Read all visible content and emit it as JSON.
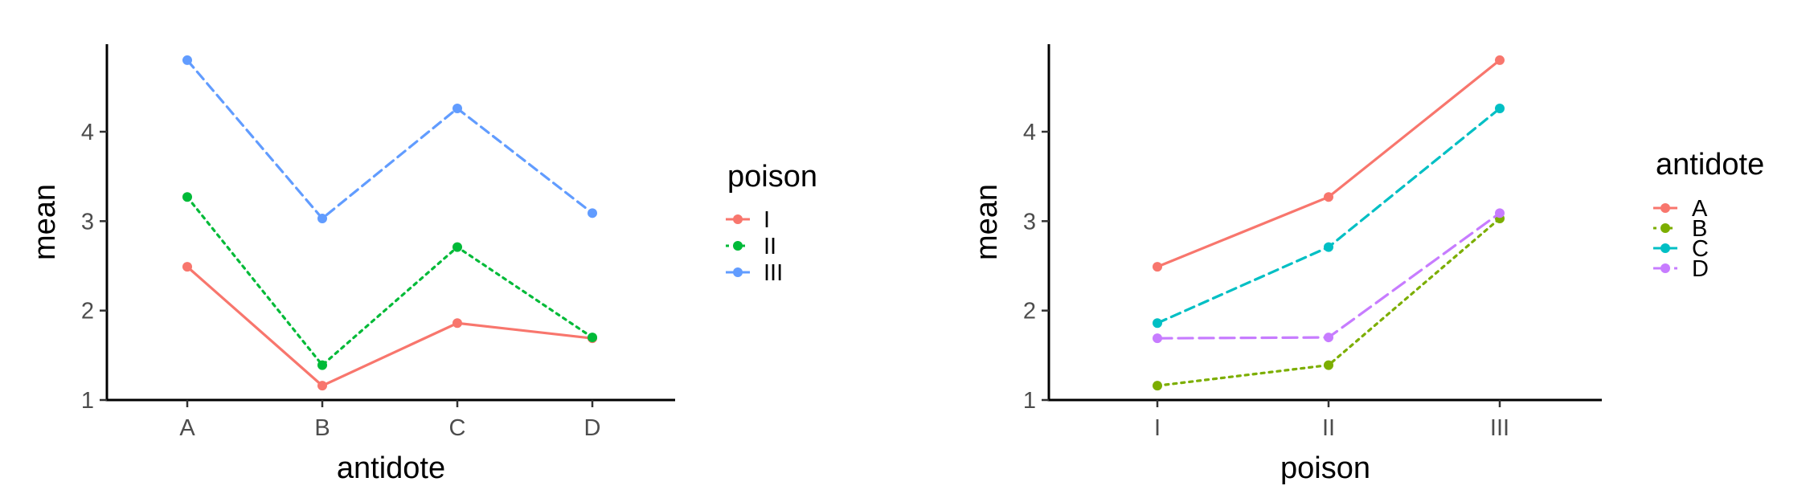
{
  "chart_data": [
    {
      "type": "line",
      "xlabel": "antidote",
      "ylabel": "mean",
      "categories": [
        "A",
        "B",
        "C",
        "D"
      ],
      "yticks": [
        1,
        2,
        3,
        4
      ],
      "ylim": [
        1,
        4.9
      ],
      "grid": false,
      "legend": {
        "title": "poison",
        "placement": "right"
      },
      "series": [
        {
          "name": "I",
          "color": "#F8766D",
          "dash": "solid",
          "values": [
            2.49,
            1.16,
            1.86,
            1.69
          ]
        },
        {
          "name": "II",
          "color": "#00BA38",
          "dash": "dotted",
          "values": [
            3.27,
            1.39,
            2.71,
            1.7
          ]
        },
        {
          "name": "III",
          "color": "#619CFF",
          "dash": "dashed",
          "values": [
            4.8,
            3.03,
            4.26,
            3.09
          ]
        }
      ]
    },
    {
      "type": "line",
      "xlabel": "poison",
      "ylabel": "mean",
      "categories": [
        "I",
        "II",
        "III"
      ],
      "yticks": [
        1,
        2,
        3,
        4
      ],
      "ylim": [
        1,
        4.9
      ],
      "grid": false,
      "legend": {
        "title": "antidote",
        "placement": "right"
      },
      "series": [
        {
          "name": "A",
          "color": "#F8766D",
          "dash": "solid",
          "values": [
            2.49,
            3.27,
            4.8
          ]
        },
        {
          "name": "B",
          "color": "#7CAE00",
          "dash": "dotted",
          "values": [
            1.16,
            1.39,
            3.03
          ]
        },
        {
          "name": "C",
          "color": "#00BFC4",
          "dash": "dashed",
          "values": [
            1.86,
            2.71,
            4.26
          ]
        },
        {
          "name": "D",
          "color": "#C77CFF",
          "dash": "longdash",
          "values": [
            1.69,
            1.7,
            3.09
          ]
        }
      ]
    }
  ]
}
